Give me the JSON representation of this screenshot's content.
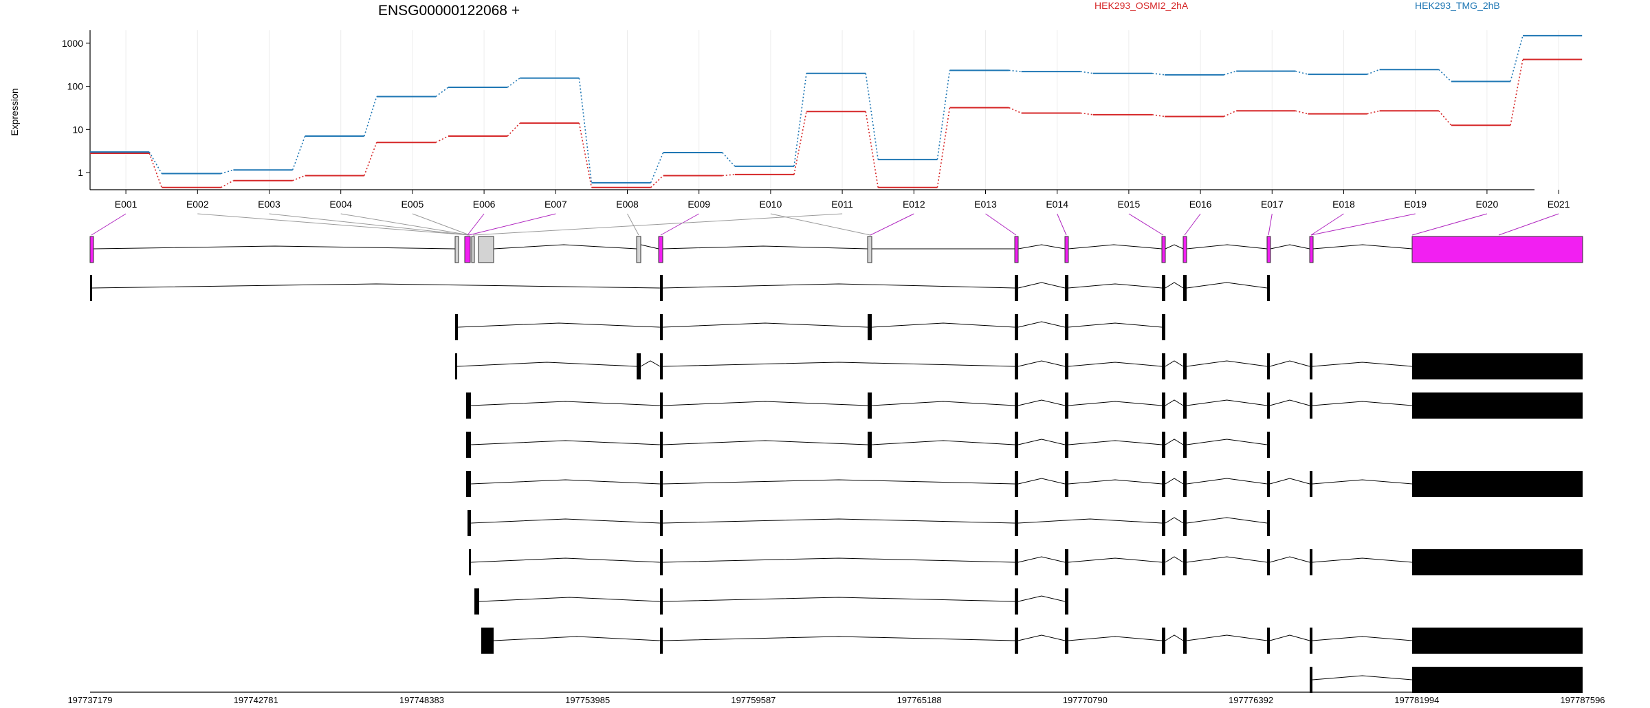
{
  "chart_data": {
    "type": "line",
    "title": "ENSG00000122068 +",
    "ylabel": "Expression",
    "yscale": "log",
    "ylim": [
      0.4,
      2000
    ],
    "yticks": [
      "1",
      "10",
      "100",
      "1000"
    ],
    "grid": true,
    "categories": [
      "E001",
      "E002",
      "E003",
      "E004",
      "E005",
      "E006",
      "E007",
      "E008",
      "E009",
      "E010",
      "E011",
      "E012",
      "E013",
      "E014",
      "E015",
      "E016",
      "E017",
      "E018",
      "E019",
      "E020",
      "E021"
    ],
    "series": [
      {
        "name": "HEK293_OSMI2_2hA",
        "color": "#d62728",
        "values": [
          2.8,
          0.45,
          0.65,
          0.85,
          5.0,
          7.0,
          14.0,
          0.45,
          0.85,
          0.9,
          26.0,
          0.45,
          32.0,
          24.0,
          22.0,
          20.0,
          27.0,
          23.0,
          27.0,
          12.5,
          420.0
        ]
      },
      {
        "name": "HEK293_TMG_2hB",
        "color": "#1f77b4",
        "values": [
          3.0,
          0.95,
          1.15,
          7.0,
          58.0,
          95.0,
          155.0,
          0.58,
          2.9,
          1.4,
          200.0,
          2.0,
          235.0,
          220.0,
          200.0,
          185.0,
          225.0,
          190.0,
          245.0,
          130.0,
          1500.0
        ]
      }
    ],
    "exon_colors": [
      "magenta",
      "grey",
      "grey",
      "grey",
      "grey",
      "magenta",
      "magenta",
      "grey",
      "magenta",
      "grey",
      "grey",
      "magenta",
      "magenta",
      "magenta",
      "magenta",
      "magenta",
      "magenta",
      "magenta",
      "magenta",
      "magenta",
      "magenta"
    ],
    "genomic_ticks": [
      "197737179",
      "197742781",
      "197748383",
      "197753985",
      "197759587",
      "197765188",
      "197770790",
      "197776392",
      "197781994",
      "197787596"
    ]
  }
}
